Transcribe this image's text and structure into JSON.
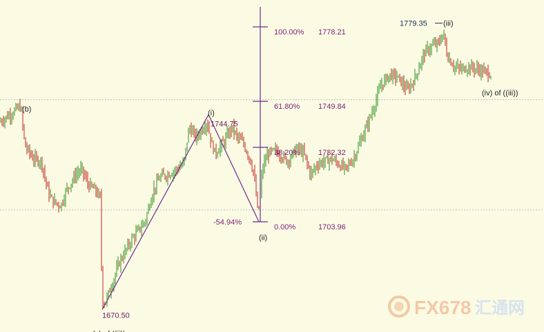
{
  "chart_data": {
    "type": "ohlc",
    "price_range": [
      1665,
      1785
    ],
    "horizontal_levels": [
      1750.5,
      1708.5
    ],
    "fibonacci": {
      "levels": [
        {
          "pct": "100.00%",
          "price": "1778.21",
          "value": 1778.21
        },
        {
          "pct": "61.80%",
          "price": "1749.84",
          "value": 1749.84
        },
        {
          "pct": "38.20%",
          "price": "1732.32",
          "value": 1732.32
        },
        {
          "pct": "0.00%",
          "price": "1703.96",
          "value": 1703.96
        }
      ]
    },
    "retracement": {
      "label": "-54.94%",
      "from": 1670.5,
      "to": 1744.75,
      "end": 1703.96
    },
    "annotations": [
      {
        "label": "(b)",
        "price": 1747
      },
      {
        "label": "(c) of ((ii))",
        "price": 1667
      },
      {
        "label": "1670.50",
        "price": 1670.5
      },
      {
        "label": "(i)",
        "price": 1745.5
      },
      {
        "label": "1744.75",
        "price": 1744.75
      },
      {
        "label": "(ii)",
        "price": 1702
      },
      {
        "label": "1779.35",
        "price": 1779.35
      },
      {
        "label": "(iii)",
        "price": 1779.35
      },
      {
        "label": "(iv) of ((iii))",
        "price": 1755.5
      }
    ],
    "colors": {
      "up": "#2f8f1f",
      "down": "#c0261e",
      "fib": "#6b2a8c",
      "level": "#bdbdbd"
    }
  },
  "watermark": {
    "text": "FX678",
    "cn_text": "汇通网"
  }
}
